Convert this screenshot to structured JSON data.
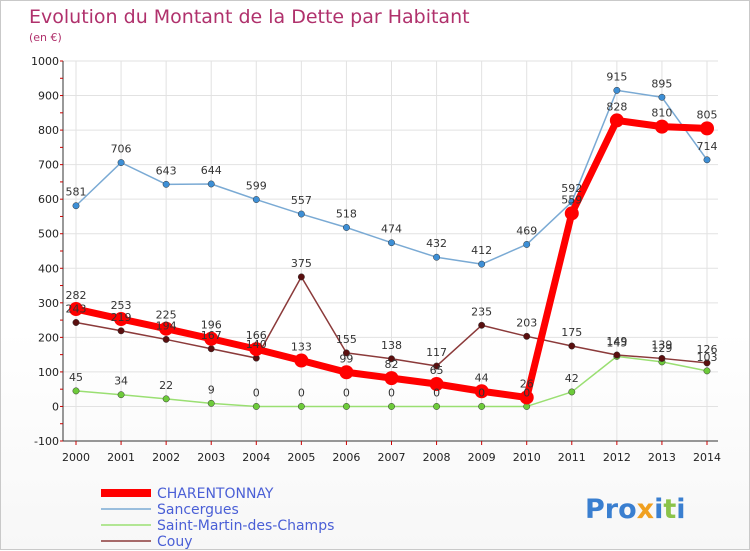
{
  "chart_data": {
    "type": "line",
    "title": "Evolution du Montant de la Dette par Habitant",
    "subtitle": "(en €)",
    "categories": [
      "2000",
      "2001",
      "2002",
      "2003",
      "2004",
      "2005",
      "2006",
      "2007",
      "2008",
      "2009",
      "2010",
      "2011",
      "2012",
      "2013",
      "2014"
    ],
    "ylim": [
      -100,
      1000
    ],
    "yticks": [
      "-100",
      "0",
      "100",
      "200",
      "300",
      "400",
      "500",
      "600",
      "700",
      "800",
      "900",
      "1000"
    ],
    "grid": true,
    "legend_position": "bottom-left",
    "series": [
      {
        "name": "Sancergues",
        "color": "#7aaad4",
        "marker": "#3d8fd6",
        "values": [
          581,
          706,
          643,
          644,
          599,
          557,
          518,
          474,
          432,
          412,
          469,
          592,
          915,
          895,
          714
        ],
        "labels": [
          "581",
          "706",
          "643",
          "644",
          "599",
          "557",
          "518",
          "474",
          "432",
          "412",
          "469",
          "592",
          "915",
          "895",
          "714"
        ]
      },
      {
        "name": "Saint-Martin-des-Champs",
        "color": "#9adf72",
        "marker": "#6dcb3a",
        "values": [
          45,
          34,
          22,
          9,
          0,
          0,
          0,
          0,
          0,
          0,
          0,
          42,
          145,
          129,
          103
        ],
        "labels": [
          "45",
          "34",
          "22",
          "9",
          "0",
          "0",
          "0",
          "0",
          "0",
          "0",
          "0",
          "42",
          "145",
          "129",
          "103"
        ]
      },
      {
        "name": "Couy",
        "color": "#8b3a3a",
        "marker": "#5a0f0f",
        "values": [
          243,
          219,
          194,
          167,
          140,
          375,
          155,
          138,
          117,
          235,
          203,
          175,
          149,
          139,
          126
        ],
        "labels": [
          "243",
          "219",
          "194",
          "167",
          "140",
          "375",
          "155",
          "138",
          "117",
          "235",
          "203",
          "175",
          "149",
          "139",
          "126"
        ]
      },
      {
        "name": "CHARENTONNAY",
        "color": "#ff0000",
        "marker": "#ff0000",
        "values": [
          282,
          253,
          225,
          196,
          166,
          133,
          99,
          82,
          65,
          44,
          26,
          559,
          828,
          810,
          805
        ],
        "labels": [
          "282",
          "253",
          "225",
          "196",
          "166",
          "133",
          "99",
          "82",
          "65",
          "44",
          "26",
          "559",
          "828",
          "810",
          "805"
        ]
      }
    ]
  },
  "legend": {
    "items": [
      {
        "label": "CHARENTONNAY",
        "color": "#ff0000"
      },
      {
        "label": "Sancergues",
        "color": "#7aaad4"
      },
      {
        "label": "Saint-Martin-des-Champs",
        "color": "#9adf72"
      },
      {
        "label": "Couy",
        "color": "#8b3a3a"
      }
    ]
  },
  "logo": {
    "text": "Proxiti"
  }
}
